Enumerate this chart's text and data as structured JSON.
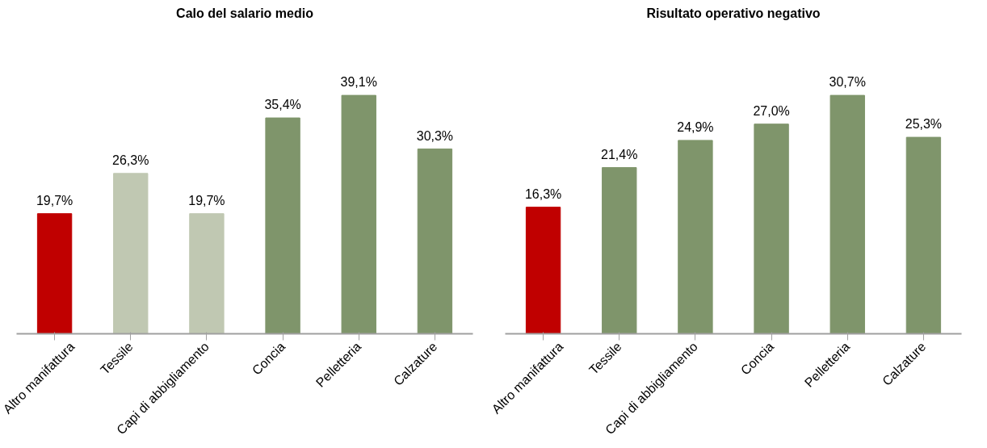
{
  "chart_data": [
    {
      "type": "bar",
      "title": "Calo del salario medio",
      "categories": [
        "Altro manifattura",
        "Tessile",
        "Capi di abbigliamento",
        "Concia",
        "Pelletteria",
        "Calzature"
      ],
      "values": [
        19.7,
        26.3,
        19.7,
        35.4,
        39.1,
        30.3
      ],
      "value_labels": [
        "19,7%",
        "26,3%",
        "19,7%",
        "35,4%",
        "39,1%",
        "30,3%"
      ],
      "colors": [
        "#c00000",
        "#c0c8b2",
        "#c0c8b2",
        "#7f956b",
        "#7f956b",
        "#7f956b"
      ],
      "tick_labels": "x",
      "grid": false
    },
    {
      "type": "bar",
      "title": "Risultato operativo negativo",
      "categories": [
        "Altro manifattura",
        "Tessile",
        "Capi di abbigliamento",
        "Concia",
        "Pelletteria",
        "Calzature"
      ],
      "values": [
        16.3,
        21.4,
        24.9,
        27.0,
        30.7,
        25.3
      ],
      "value_labels": [
        "16,3%",
        "21,4%",
        "24,9%",
        "27,0%",
        "30,7%",
        "25,3%"
      ],
      "colors": [
        "#c00000",
        "#7f956b",
        "#7f956b",
        "#7f956b",
        "#7f956b",
        "#7f956b"
      ],
      "tick_labels": "x",
      "grid": false
    }
  ]
}
